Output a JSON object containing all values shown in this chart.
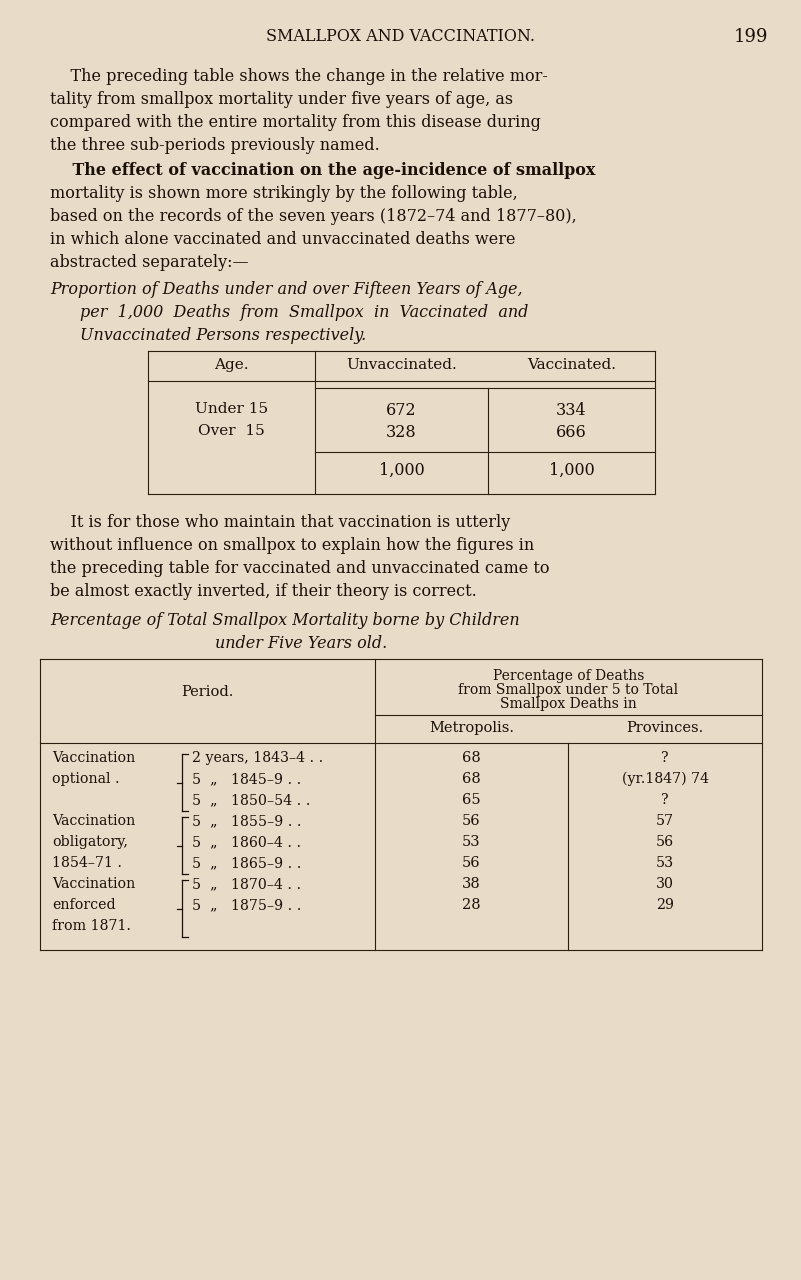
{
  "bg_color": "#e8dcc8",
  "page_title": "SMALLPOX AND VACCINATION.",
  "page_number": "199",
  "para1_lines": [
    "    The preceding table shows the change in the relative mor-",
    "tality from smallpox mortality under five years of age, as",
    "compared with the entire mortality from this disease during",
    "the three sub-periods previously named."
  ],
  "para2_bold": "    The effect of vaccination on the age-incidence of smallpox",
  "para2_rest_lines": [
    "mortality is shown more strikingly by the following table,",
    "based on the records of the seven years (1872–74 and 1877–80),",
    "in which alone vaccinated and unvaccinated deaths were",
    "abstracted separately:—"
  ],
  "italic_title1": "Proportion of Deaths under and over Fifteen Years of Age,",
  "italic_title2": "per  1,000  Deaths  from  Smallpox  in  Vaccinated  and",
  "italic_title3": "Unvaccinated Persons respectively.",
  "para3_lines": [
    "    It is for those who maintain that vaccination is utterly",
    "without influence on smallpox to explain how the figures in",
    "the preceding table for vaccinated and unvaccinated came to",
    "be almost exactly inverted, if their theory is correct."
  ],
  "italic_title4": "Percentage of Total Smallpox Mortality borne by Children",
  "italic_title5": "under Five Years old.",
  "table2_col_header2a": "Percentage of Deaths",
  "table2_col_header2b": "from Smallpox under 5 to Total",
  "table2_col_header2c": "Smallpox Deaths in",
  "table2_col_header3": "Metropolis.",
  "table2_col_header4": "Provinces."
}
